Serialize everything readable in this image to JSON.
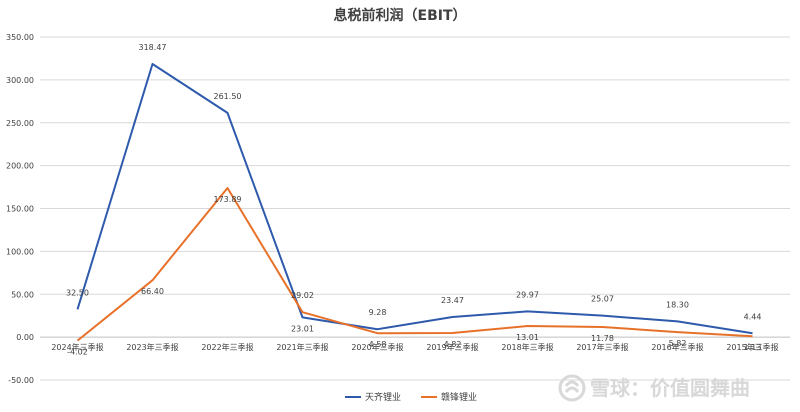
{
  "watermark": {
    "text": "雪球：价值圆舞曲"
  },
  "chart_data": {
    "type": "line",
    "title": "息税前利润（EBIT）",
    "categories": [
      "2024年三季报",
      "2023年三季报",
      "2022年三季报",
      "2021年三季报",
      "2020年三季报",
      "2019年三季报",
      "2018年三季报",
      "2017年三季报",
      "2016年三季报",
      "2015年三季报"
    ],
    "ylim": [
      -50,
      350
    ],
    "yticks": [
      "-50.00",
      "0.00",
      "50.00",
      "100.00",
      "150.00",
      "200.00",
      "250.00",
      "300.00",
      "350.00"
    ],
    "grid": true,
    "legend_position": "bottom",
    "series": [
      {
        "name": "天齐锂业",
        "color": "#2e5aac",
        "values": [
          32.5,
          318.47,
          261.5,
          23.01,
          9.28,
          23.47,
          29.97,
          25.07,
          18.3,
          4.44
        ],
        "labels": [
          "32.50",
          "318.47",
          "261.50",
          "23.01",
          "9.28",
          "23.47",
          "29.97",
          "25.07",
          "18.30",
          "4.44"
        ]
      },
      {
        "name": "赣锋锂业",
        "color": "#e8712a",
        "values": [
          -4.02,
          66.4,
          173.89,
          29.02,
          4.58,
          4.82,
          13.01,
          11.78,
          5.82,
          1.13
        ],
        "labels": [
          "-4.02",
          "66.40",
          "173.89",
          "29.02",
          "4.58",
          "4.82",
          "13.01",
          "11.78",
          "5.82",
          "1.13"
        ]
      }
    ]
  }
}
